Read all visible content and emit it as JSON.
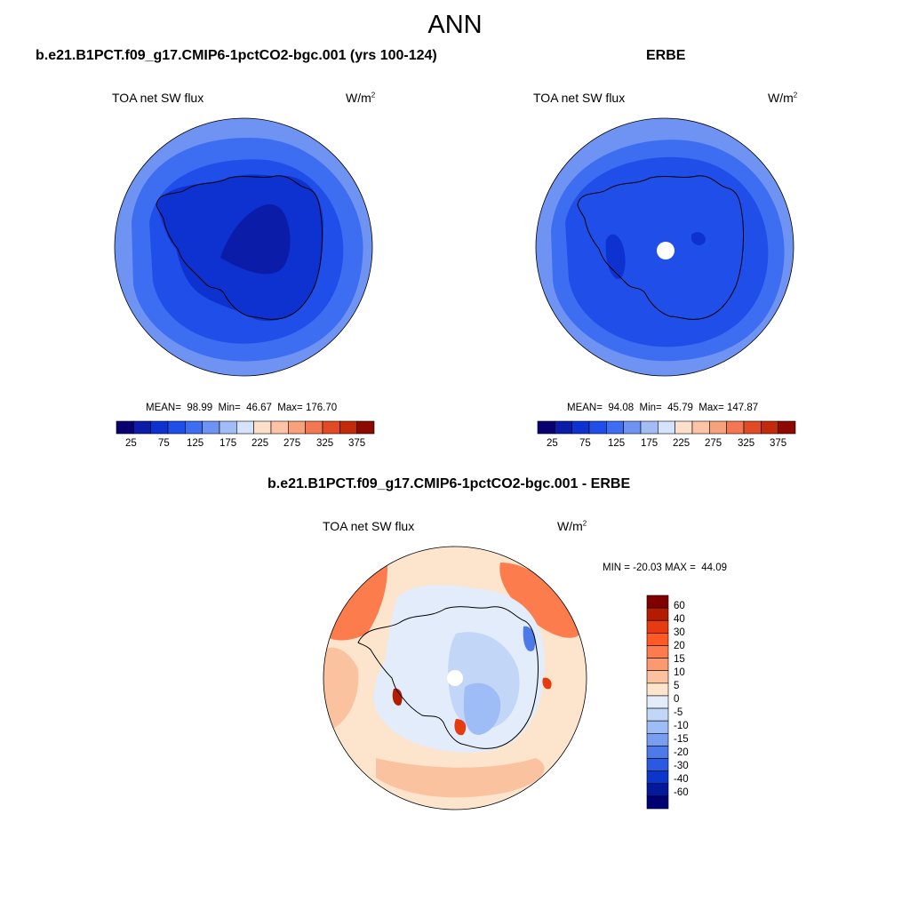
{
  "figure": {
    "title": "ANN"
  },
  "panels": {
    "model": {
      "title": "b.e21.B1PCT.f09_g17.CMIP6-1pctCO2-bgc.001 (yrs 100-124)",
      "variable": "TOA net SW flux",
      "units_base": "W/m",
      "units_exp": "2",
      "stats": "MEAN=  98.99  Min=  46.67  Max= 176.70"
    },
    "obs": {
      "title": "ERBE",
      "variable": "TOA net SW flux",
      "units_base": "W/m",
      "units_exp": "2",
      "stats": "MEAN=  94.08  Min=  45.79  Max= 147.87"
    },
    "diff": {
      "title": "b.e21.B1PCT.f09_g17.CMIP6-1pctCO2-bgc.001 - ERBE",
      "variable": "TOA net SW flux",
      "units_base": "W/m",
      "units_exp": "2",
      "stats": "MIN = -20.03 MAX =  44.09"
    }
  },
  "colorbars": {
    "field": {
      "tick_labels": [
        "25",
        "75",
        "125",
        "175",
        "225",
        "275",
        "325",
        "375"
      ],
      "colors": [
        "#08006e",
        "#0a1ca8",
        "#0e32d0",
        "#1f4fe8",
        "#3d6df0",
        "#6e93f2",
        "#a2bcf5",
        "#d4e2fb",
        "#fde0cc",
        "#fcc3a6",
        "#f9a07c",
        "#f27752",
        "#e04a24",
        "#c22a0c",
        "#8c0a00"
      ]
    },
    "diff": {
      "labels": [
        "60",
        "40",
        "30",
        "20",
        "15",
        "10",
        "5",
        "0",
        "-5",
        "-10",
        "-15",
        "-20",
        "-30",
        "-40",
        "-60"
      ],
      "colors": [
        "#800000",
        "#b31c00",
        "#e63a10",
        "#ff5a26",
        "#fc7c4e",
        "#fa9a70",
        "#fbc29f",
        "#fde4cc",
        "#e3ecfb",
        "#c2d6f8",
        "#9ebcf5",
        "#789df1",
        "#4d7ae9",
        "#2a59e2",
        "#0b36c9",
        "#04189a",
        "#000072"
      ]
    }
  },
  "map_colors": {
    "land_outline": "#000000",
    "model_levels": [
      "#6e93f2",
      "#3d6df0",
      "#1f4fe8",
      "#0e32d0",
      "#0a1ca8"
    ],
    "obs_levels": [
      "#6e93f2",
      "#3d6df0",
      "#1f4fe8",
      "#0e32d0",
      "#0a1ca8"
    ],
    "diff_positive": "#fbc29f",
    "diff_strong_positive": "#fc7c4e",
    "diff_negative": "#c2d6f8",
    "diff_strong_negative": "#789df1"
  }
}
